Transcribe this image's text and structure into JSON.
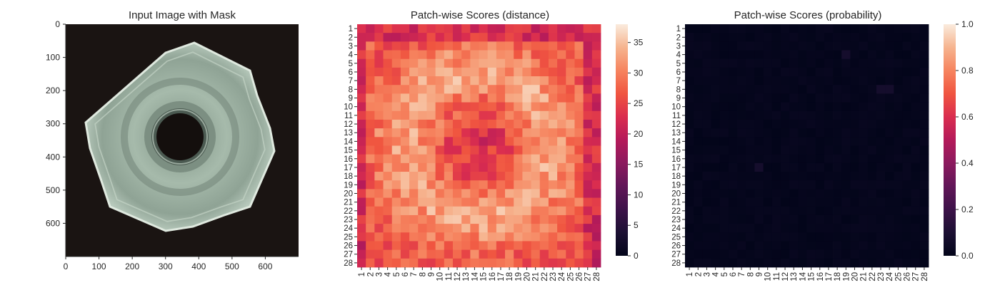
{
  "chart_data": [
    {
      "type": "image",
      "title": "Input Image with Mask",
      "x_ticks": [
        0,
        100,
        200,
        300,
        400,
        500,
        600
      ],
      "y_ticks": [
        0,
        100,
        200,
        300,
        400,
        500,
        600
      ],
      "xlim": [
        0,
        700
      ],
      "ylim": [
        0,
        700
      ],
      "image_content": "metal nut with four tabs on dark background",
      "colors": {
        "background": "#1a1412",
        "metal": "#9fb5a6",
        "hole": "#140f0d"
      }
    },
    {
      "type": "heatmap",
      "title": "Patch-wise Scores (distance)",
      "rows": 28,
      "cols": 28,
      "tick_labels": [
        "1",
        "2",
        "3",
        "4",
        "5",
        "6",
        "7",
        "8",
        "9",
        "10",
        "11",
        "12",
        "13",
        "14",
        "15",
        "16",
        "17",
        "18",
        "19",
        "20",
        "21",
        "22",
        "23",
        "24",
        "25",
        "26",
        "27",
        "28"
      ],
      "colorbar": {
        "min": 0,
        "max": 38,
        "ticks": [
          0,
          5,
          10,
          15,
          20,
          25,
          30,
          35
        ]
      },
      "colormap": "rocket",
      "value_range": [
        8,
        38
      ]
    },
    {
      "type": "heatmap",
      "title": "Patch-wise Scores (probability)",
      "rows": 28,
      "cols": 28,
      "tick_labels": [
        "1",
        "2",
        "3",
        "4",
        "5",
        "6",
        "7",
        "8",
        "9",
        "10",
        "11",
        "12",
        "13",
        "14",
        "15",
        "16",
        "17",
        "18",
        "19",
        "20",
        "21",
        "22",
        "23",
        "24",
        "25",
        "26",
        "27",
        "28"
      ],
      "colorbar": {
        "min": 0,
        "max": 1,
        "ticks": [
          "0.0",
          "0.2",
          "0.4",
          "0.6",
          "0.8",
          "1.0"
        ]
      },
      "colormap": "rocket",
      "value_range": [
        0,
        0.08
      ]
    }
  ]
}
